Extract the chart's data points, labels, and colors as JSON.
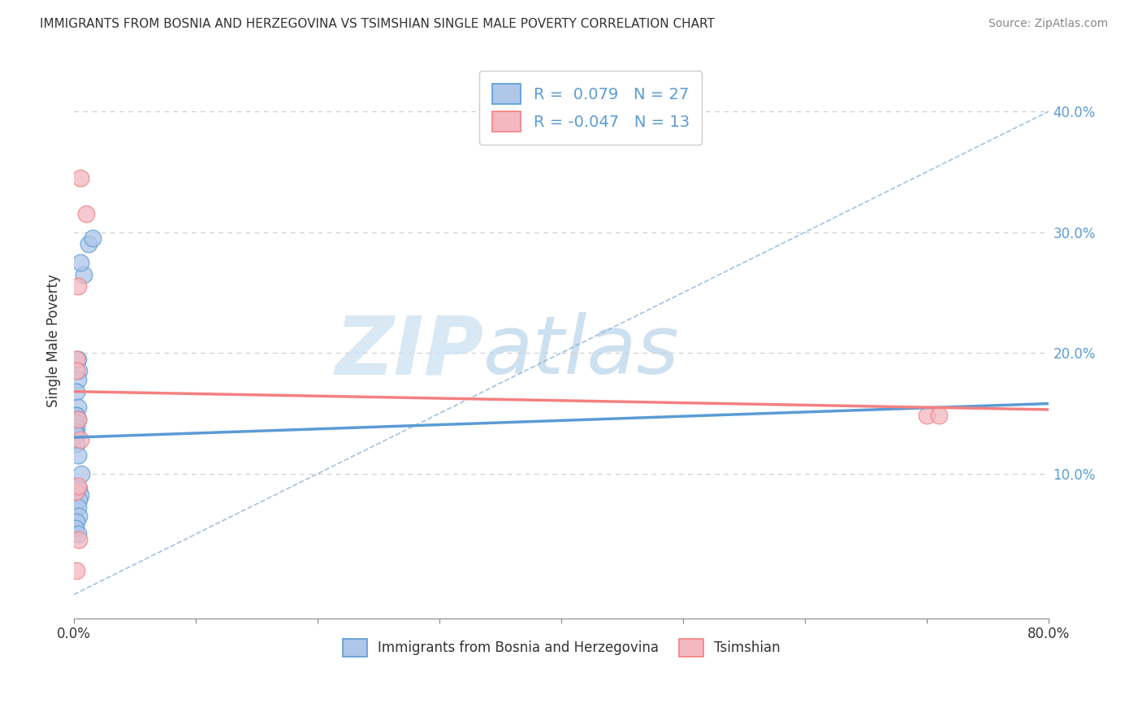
{
  "title": "IMMIGRANTS FROM BOSNIA AND HERZEGOVINA VS TSIMSHIAN SINGLE MALE POVERTY CORRELATION CHART",
  "source": "Source: ZipAtlas.com",
  "ylabel": "Single Male Poverty",
  "xlim": [
    0,
    0.8
  ],
  "ylim": [
    -0.02,
    0.44
  ],
  "xticks": [
    0.0,
    0.1,
    0.2,
    0.3,
    0.4,
    0.5,
    0.6,
    0.7,
    0.8
  ],
  "xticklabels": [
    "0.0%",
    "",
    "",
    "",
    "",
    "",
    "",
    "",
    "80.0%"
  ],
  "yticks_right": [
    0.1,
    0.2,
    0.3,
    0.4
  ],
  "ytick_right_labels": [
    "10.0%",
    "20.0%",
    "30.0%",
    "40.0%"
  ],
  "R_blue": 0.079,
  "N_blue": 27,
  "R_pink": -0.047,
  "N_pink": 13,
  "blue_scatter_x": [
    0.008,
    0.012,
    0.005,
    0.015,
    0.003,
    0.004,
    0.003,
    0.002,
    0.003,
    0.001,
    0.002,
    0.003,
    0.001,
    0.002,
    0.001,
    0.002,
    0.002,
    0.003,
    0.004,
    0.005,
    0.004,
    0.003,
    0.004,
    0.002,
    0.001,
    0.003,
    0.006
  ],
  "blue_scatter_y": [
    0.265,
    0.29,
    0.275,
    0.295,
    0.195,
    0.185,
    0.178,
    0.168,
    0.155,
    0.148,
    0.148,
    0.145,
    0.142,
    0.138,
    0.135,
    0.132,
    0.125,
    0.115,
    0.088,
    0.082,
    0.078,
    0.072,
    0.065,
    0.06,
    0.055,
    0.05,
    0.1
  ],
  "pink_scatter_x": [
    0.005,
    0.01,
    0.003,
    0.002,
    0.002,
    0.003,
    0.005,
    0.001,
    0.003,
    0.7,
    0.71,
    0.004,
    0.002
  ],
  "pink_scatter_y": [
    0.345,
    0.315,
    0.255,
    0.195,
    0.185,
    0.145,
    0.128,
    0.085,
    0.09,
    0.148,
    0.148,
    0.045,
    0.02
  ],
  "blue_line_x": [
    0.0,
    0.8
  ],
  "blue_line_y": [
    0.13,
    0.158
  ],
  "pink_line_x": [
    0.0,
    0.8
  ],
  "pink_line_y": [
    0.168,
    0.153
  ],
  "ref_line_x": [
    0.0,
    0.8
  ],
  "ref_line_y": [
    0.0,
    0.4
  ],
  "blue_line_color": "#5b9bd5",
  "pink_line_color": "#f48080",
  "blue_scatter_color": "#aec6e8",
  "pink_scatter_color": "#f4b8c1",
  "ref_line_color": "#8ab4d9",
  "watermark_zip": "ZIP",
  "watermark_atlas": "atlas",
  "legend_label_blue": "Immigrants from Bosnia and Herzegovina",
  "legend_label_pink": "Tsimshian",
  "background_color": "#ffffff",
  "grid_color": "#cccccc"
}
